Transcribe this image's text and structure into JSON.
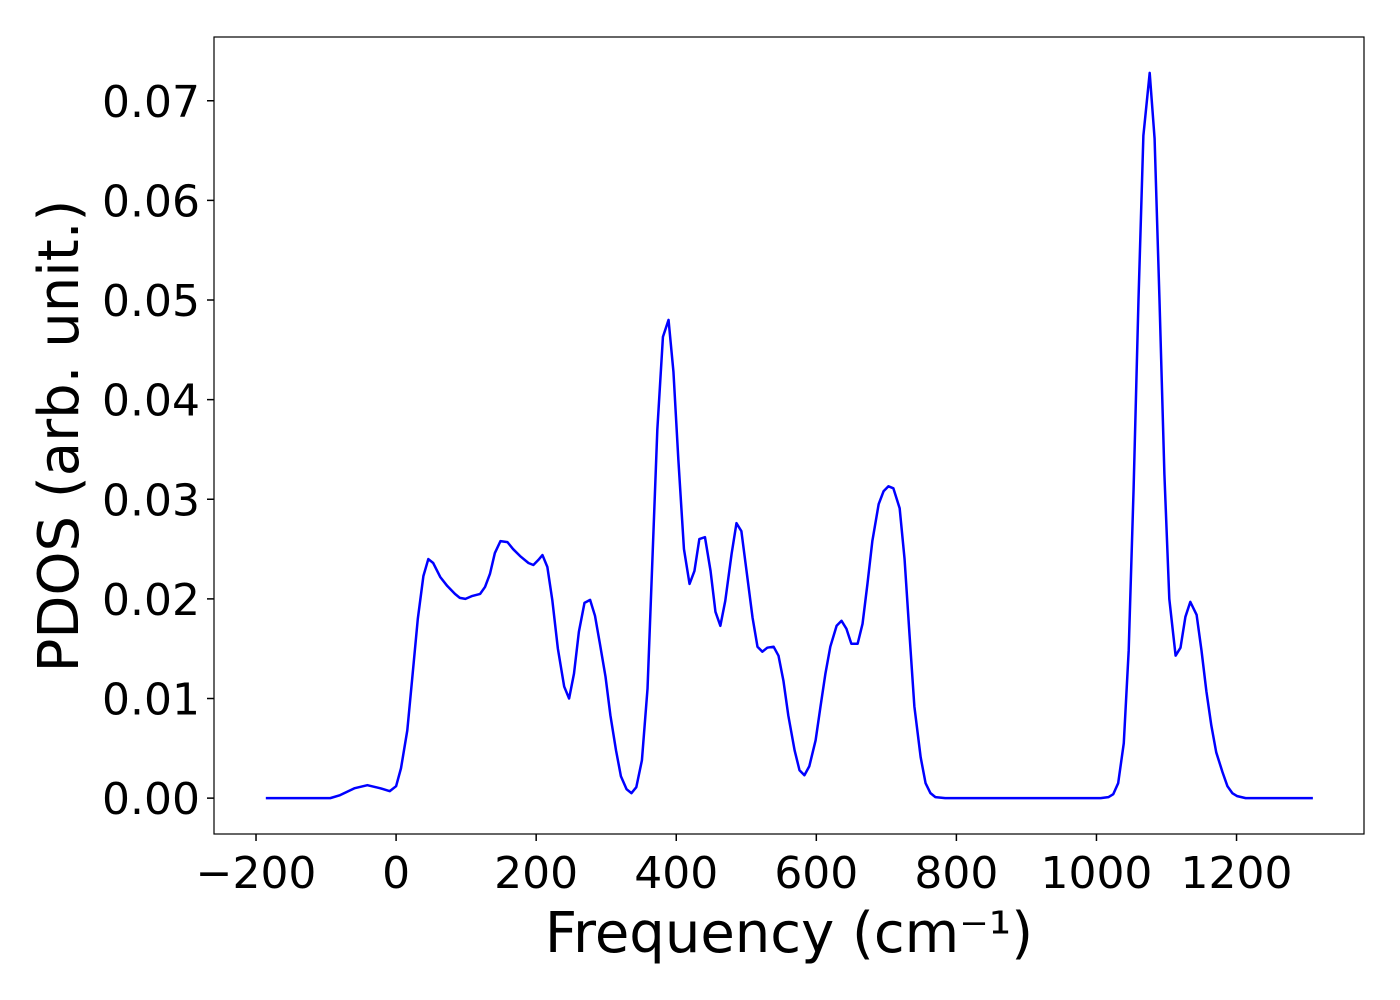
{
  "chart_data": {
    "type": "line",
    "x_label": "Frequency (cm⁻¹)",
    "y_label": "PDOS (arb. unit.)",
    "xlim": [
      -260,
      1382
    ],
    "ylim": [
      -0.0036,
      0.0764
    ],
    "xticks": [
      {
        "value": -200,
        "label": "−200"
      },
      0,
      200,
      400,
      600,
      800,
      1000,
      1200
    ],
    "yticks": [
      {
        "value": 0,
        "label": "0.00"
      },
      0.01,
      0.02,
      0.03,
      0.04,
      0.05,
      0.06,
      0.07
    ],
    "series": [
      {
        "color": "#0000ff",
        "x": [
          -186,
          -94,
          -80,
          -59,
          -41,
          -23,
          -9,
          0,
          7,
          16,
          23,
          31,
          39,
          46,
          53,
          63,
          73,
          84,
          91,
          99,
          109,
          120,
          127,
          134,
          141,
          149,
          159,
          167,
          177,
          189,
          196,
          203,
          209,
          216,
          223,
          231,
          240,
          247,
          254,
          261,
          269,
          277,
          284,
          291,
          299,
          306,
          314,
          321,
          329,
          336,
          343,
          351,
          359,
          366,
          373,
          381,
          389,
          396,
          403,
          411,
          419,
          426,
          433,
          441,
          449,
          456,
          463,
          470,
          479,
          486,
          493,
          500,
          509,
          516,
          523,
          530,
          539,
          546,
          553,
          560,
          569,
          576,
          583,
          590,
          599,
          606,
          613,
          620,
          629,
          636,
          643,
          650,
          659,
          666,
          673,
          680,
          689,
          696,
          703,
          710,
          719,
          726,
          733,
          740,
          749,
          756,
          763,
          770,
          784,
          1006,
          1017,
          1024,
          1031,
          1039,
          1046,
          1053,
          1060,
          1067,
          1076,
          1083,
          1090,
          1097,
          1104,
          1113,
          1120,
          1127,
          1134,
          1143,
          1150,
          1157,
          1164,
          1171,
          1180,
          1187,
          1194,
          1201,
          1213,
          1309
        ],
        "values": [
          0,
          0,
          0.0003,
          0.001,
          0.0013,
          0.001,
          0.0007,
          0.0012,
          0.003,
          0.0068,
          0.012,
          0.018,
          0.0223,
          0.024,
          0.0236,
          0.0222,
          0.0213,
          0.0205,
          0.0201,
          0.02,
          0.0203,
          0.0205,
          0.0212,
          0.0225,
          0.0246,
          0.0258,
          0.0257,
          0.025,
          0.0243,
          0.0236,
          0.0234,
          0.0239,
          0.0244,
          0.0232,
          0.0199,
          0.015,
          0.0112,
          0.01,
          0.0125,
          0.0167,
          0.0196,
          0.0199,
          0.0183,
          0.0155,
          0.0122,
          0.0083,
          0.0048,
          0.0022,
          0.0009,
          0.0005,
          0.0011,
          0.0038,
          0.011,
          0.024,
          0.037,
          0.0463,
          0.048,
          0.0428,
          0.034,
          0.025,
          0.0215,
          0.0228,
          0.026,
          0.0262,
          0.0228,
          0.0187,
          0.0173,
          0.0198,
          0.0245,
          0.0276,
          0.0268,
          0.023,
          0.0181,
          0.0152,
          0.0147,
          0.0151,
          0.0152,
          0.0143,
          0.0118,
          0.0083,
          0.0048,
          0.0028,
          0.0023,
          0.0032,
          0.0058,
          0.0092,
          0.0125,
          0.0152,
          0.0173,
          0.0178,
          0.017,
          0.0155,
          0.0155,
          0.0175,
          0.0215,
          0.0258,
          0.0295,
          0.0308,
          0.0313,
          0.0311,
          0.0291,
          0.024,
          0.0165,
          0.0092,
          0.0041,
          0.0015,
          0.0005,
          0.0001,
          0,
          0,
          0.0001,
          0.0004,
          0.0015,
          0.0055,
          0.0148,
          0.031,
          0.05,
          0.0665,
          0.0728,
          0.0662,
          0.05,
          0.0325,
          0.02,
          0.0143,
          0.0151,
          0.0182,
          0.0197,
          0.0184,
          0.0148,
          0.0107,
          0.0073,
          0.0046,
          0.0026,
          0.0012,
          0.0005,
          0.0002,
          0,
          0
        ]
      }
    ]
  }
}
